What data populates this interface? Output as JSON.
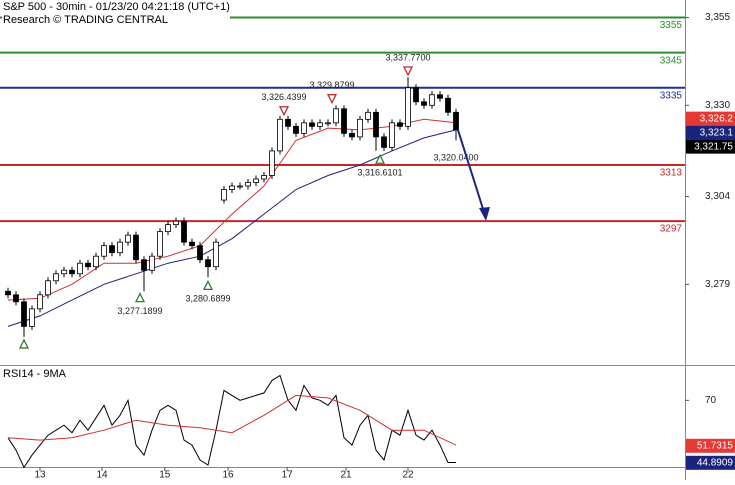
{
  "chart_data": [
    {
      "type": "candlestick",
      "title": "S&P 500 - 30min - 01/23/20 04:21:18 (UTC+1)",
      "subtitle": "Research © TRADING CENTRAL",
      "open": [
        3277,
        3276,
        3274,
        3267,
        3272,
        3276,
        3280,
        3282,
        3283,
        3282,
        3285,
        3284,
        3287,
        3290,
        3288,
        3291,
        3293,
        3286,
        3283,
        3287,
        3294,
        3296,
        3297,
        3291,
        3290,
        3286,
        3284,
        3303,
        3306,
        3307,
        3307,
        3308,
        3309,
        3310,
        3317,
        3326,
        3324,
        3322,
        3325,
        3324,
        3325,
        3325,
        3329,
        3322,
        3321,
        3326,
        3328,
        3321,
        3318,
        3325,
        3324,
        3335,
        3331,
        3330,
        3333,
        3332,
        3328
      ],
      "high": [
        3278,
        3277,
        3275,
        3273,
        3277,
        3281,
        3283,
        3284,
        3284,
        3286,
        3286,
        3288,
        3291,
        3291,
        3292,
        3294,
        3294,
        3287,
        3288,
        3295,
        3297,
        3298,
        3298,
        3292,
        3291,
        3287,
        3292,
        3307,
        3308,
        3308,
        3309,
        3310,
        3311,
        3318,
        3327,
        3327,
        3325,
        3326,
        3326,
        3326,
        3326,
        3330,
        3330,
        3323,
        3327,
        3329,
        3329,
        3322,
        3326,
        3326,
        3338,
        3336,
        3332,
        3334,
        3334,
        3333,
        3329
      ],
      "low": [
        3275,
        3273,
        3264,
        3266,
        3271,
        3275,
        3279,
        3281,
        3281,
        3281,
        3283,
        3283,
        3286,
        3287,
        3287,
        3290,
        3285,
        3277,
        3282,
        3286,
        3293,
        3295,
        3290,
        3289,
        3285,
        3281,
        3283,
        3302,
        3305,
        3306,
        3306,
        3307,
        3308,
        3309,
        3316,
        3323,
        3321,
        3321,
        3323,
        3323,
        3324,
        3324,
        3321,
        3320,
        3320,
        3325,
        3317,
        3317,
        3317,
        3323,
        3323,
        3330,
        3329,
        3329,
        3331,
        3327,
        3320
      ],
      "close": [
        3276,
        3274,
        3267,
        3272,
        3276,
        3280,
        3282,
        3283,
        3282,
        3285,
        3284,
        3287,
        3290,
        3288,
        3291,
        3293,
        3286,
        3283,
        3287,
        3294,
        3296,
        3297,
        3291,
        3290,
        3286,
        3284,
        3291,
        3306,
        3307,
        3307,
        3308,
        3309,
        3310,
        3317,
        3326,
        3324,
        3322,
        3325,
        3324,
        3325,
        3325,
        3329,
        3322,
        3321,
        3326,
        3328,
        3321,
        3318,
        3325,
        3324,
        3335,
        3331,
        3330,
        3333,
        3332,
        3328,
        3323
      ],
      "up_color": "#ffffff",
      "down_color": "#000000",
      "xlim": [
        -1,
        84.625
      ],
      "xticks": [
        {
          "value": 4,
          "label": "13"
        },
        {
          "value": 11.75,
          "label": "14"
        },
        {
          "value": 19.6,
          "label": "15"
        },
        {
          "value": 27.5,
          "label": "16"
        },
        {
          "value": 34.9,
          "label": "17"
        },
        {
          "value": 42.25,
          "label": "21"
        },
        {
          "value": 50,
          "label": "22"
        }
      ],
      "ylim": [
        3256,
        3360
      ],
      "yticks": [
        {
          "value": 3355,
          "label": "3,355"
        },
        {
          "value": 3330,
          "label": "3,330"
        },
        {
          "value": 3304,
          "label": "3,304"
        },
        {
          "value": 3279,
          "label": "3,279"
        }
      ],
      "levels": [
        {
          "value": 3355,
          "label": "3355",
          "color": "#2e8b2e"
        },
        {
          "value": 3345,
          "label": "3345",
          "color": "#2e8b2e"
        },
        {
          "value": 3335,
          "label": "3335",
          "color": "#1f2f8f"
        },
        {
          "value": 3313,
          "label": "3313",
          "color": "#c62828"
        },
        {
          "value": 3297,
          "label": "3297",
          "color": "#c62828"
        }
      ],
      "series": [
        {
          "color": "#d32f2f",
          "x": [
            0,
            4,
            8,
            12,
            16,
            20,
            24,
            28,
            32,
            36,
            40,
            44,
            48,
            52,
            56
          ],
          "values": [
            3274.5,
            3275,
            3279,
            3285,
            3285,
            3287,
            3290,
            3299,
            3307,
            3320,
            3323.5,
            3323,
            3324,
            3326,
            3325
          ]
        },
        {
          "color": "#1a237e",
          "x": [
            0,
            4,
            8,
            12,
            16,
            20,
            24,
            28,
            32,
            36,
            40,
            44,
            48,
            52,
            56
          ],
          "values": [
            3267,
            3270,
            3274.5,
            3279,
            3282,
            3285,
            3287,
            3292,
            3299,
            3306,
            3310,
            3313,
            3317,
            3320.7,
            3323
          ]
        }
      ],
      "annotations": [
        {
          "x": 2,
          "value": 3264,
          "marker": "up"
        },
        {
          "x": 16.5,
          "value": 3277.1899,
          "label": "3,277.1899",
          "marker": "up"
        },
        {
          "x": 25,
          "value": 3280.6899,
          "label": "3,280.6899",
          "marker": "up"
        },
        {
          "x": 34.5,
          "value": 3326.4399,
          "label": "3,326.4399",
          "marker": "down"
        },
        {
          "x": 40.5,
          "value": 3329.8799,
          "label": "3,329.8799",
          "marker": "down"
        },
        {
          "x": 46.5,
          "value": 3316.6101,
          "label": "3,316.6101",
          "marker": "up"
        },
        {
          "x": 50,
          "value": 3337.77,
          "label": "3,337.7700",
          "marker": "down"
        },
        {
          "x": 56,
          "value": 3320.04,
          "label": "3,320.0400"
        }
      ],
      "price_tags": [
        {
          "value": 3326.2,
          "label": "3,326.2",
          "color": "#e53935"
        },
        {
          "value": 3323.1,
          "label": "3,323.1",
          "color": "#1a237e"
        },
        {
          "value": 3321.75,
          "label": "3,321.75",
          "color": "#000000"
        }
      ]
    },
    {
      "type": "line",
      "title": "RSI14 - 9MA",
      "ylim": [
        42,
        83
      ],
      "yticks": [
        70
      ],
      "series": [
        {
          "color": "#000000",
          "values": [
            55,
            50,
            43,
            48,
            52,
            56,
            58,
            60,
            57,
            62,
            58,
            63,
            68,
            60,
            64,
            70,
            52,
            48,
            58,
            66,
            68,
            66,
            54,
            52,
            46,
            44,
            58,
            74,
            72,
            70,
            71,
            72,
            73,
            78,
            80,
            70,
            66,
            76,
            71,
            70,
            68,
            72,
            55,
            52,
            60,
            64,
            50,
            46,
            58,
            56,
            66,
            56,
            54,
            58,
            52,
            45,
            45
          ]
        },
        {
          "color": "#d32f2f",
          "x": [
            0,
            4,
            8,
            12,
            16,
            20,
            24,
            28,
            32,
            36,
            40,
            44,
            48,
            52,
            56
          ],
          "values": [
            55,
            54,
            55,
            58,
            62,
            60,
            59,
            57,
            64,
            72,
            71,
            66,
            58,
            58,
            52
          ]
        }
      ],
      "price_tags": [
        {
          "value": 51.7315,
          "label": "51.7315",
          "color": "#e53935"
        },
        {
          "value": 44.8909,
          "label": "44.8909",
          "color": "#1a237e"
        }
      ]
    }
  ]
}
